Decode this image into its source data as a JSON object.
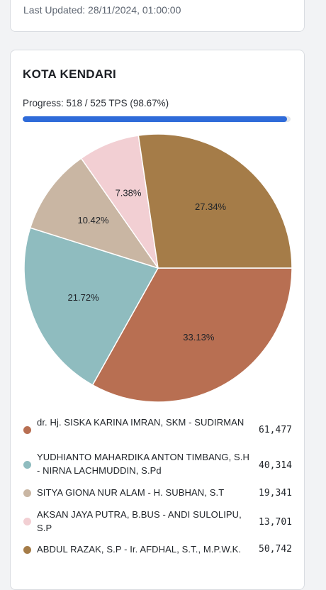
{
  "last_updated": "Last Updated: 28/11/2024, 01:00:00",
  "region": {
    "title": "KOTA KENDARI",
    "progress_text": "Progress: 518 / 525 TPS (98.67%)",
    "progress_fraction": 0.9867
  },
  "chart_data": {
    "type": "pie",
    "categories": [
      "dr. Hj. SISKA KARINA IMRAN, SKM - SUDIRMAN",
      "YUDHIANTO MAHARDIKA ANTON TIMBANG, S.H - NIRNA LACHMUDDIN, S.Pd",
      "SITYA GIONA NUR ALAM - H. SUBHAN, S.T",
      "AKSAN JAYA PUTRA, B.BUS - ANDI SULOLIPU, S.P",
      "ABDUL RAZAK, S.P - Ir. AFDHAL, S.T., M.P.W.K."
    ],
    "values": [
      61477,
      40314,
      19341,
      13701,
      50742
    ],
    "value_labels": [
      "61,477",
      "40,314",
      "19,341",
      "13,701",
      "50,742"
    ],
    "percent_labels": [
      "33.13%",
      "21.72%",
      "10.42%",
      "7.38%",
      "27.34%"
    ],
    "colors": [
      "#b86f52",
      "#8fbcbf",
      "#c9b6a3",
      "#f2cfd3",
      "#a57c48"
    ],
    "legend_placement": "bottom"
  },
  "legend": [
    {
      "name": "dr. Hj. SISKA KARINA IMRAN, SKM - SUDIRMAN",
      "value": "61,477"
    },
    {
      "name": "YUDHIANTO MAHARDIKA ANTON TIMBANG, S.H - NIRNA LACHMUDDIN, S.Pd",
      "value": "40,314"
    },
    {
      "name": "SITYA GIONA NUR ALAM - H. SUBHAN, S.T",
      "value": "19,341"
    },
    {
      "name": "AKSAN JAYA PUTRA, B.BUS - ANDI SULOLIPU, S.P",
      "value": "13,701"
    },
    {
      "name": "ABDUL RAZAK, S.P - Ir. AFDHAL, S.T., M.P.W.K.",
      "value": "50,742"
    }
  ]
}
